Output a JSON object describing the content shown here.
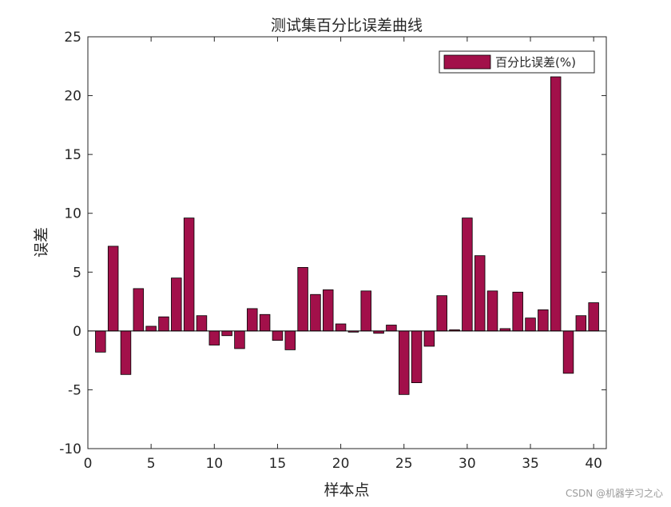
{
  "chart_data": {
    "type": "bar",
    "title": "测试集百分比误差曲线",
    "xlabel": "样本点",
    "ylabel": "误差",
    "xlim": [
      0,
      41
    ],
    "ylim": [
      -10,
      25
    ],
    "xticks": [
      0,
      5,
      10,
      15,
      20,
      25,
      30,
      35,
      40
    ],
    "yticks": [
      -10,
      -5,
      0,
      5,
      10,
      15,
      20,
      25
    ],
    "grid": false,
    "legend_position": "top-right",
    "series": [
      {
        "name": "百分比误差(%)",
        "color": "#A2104A",
        "x": [
          1,
          2,
          3,
          4,
          5,
          6,
          7,
          8,
          9,
          10,
          11,
          12,
          13,
          14,
          15,
          16,
          17,
          18,
          19,
          20,
          21,
          22,
          23,
          24,
          25,
          26,
          27,
          28,
          29,
          30,
          31,
          32,
          33,
          34,
          35,
          36,
          37,
          38,
          39,
          40
        ],
        "values": [
          -1.8,
          7.2,
          -3.7,
          3.6,
          0.4,
          1.2,
          4.5,
          9.6,
          1.3,
          -1.2,
          -0.4,
          -1.5,
          1.9,
          1.4,
          -0.8,
          -1.6,
          5.4,
          3.1,
          3.5,
          0.6,
          -0.1,
          3.4,
          -0.2,
          0.5,
          -5.4,
          -4.4,
          -1.3,
          3.0,
          0.1,
          9.6,
          6.4,
          3.4,
          0.2,
          3.3,
          1.1,
          1.8,
          21.6,
          -3.6,
          1.3,
          2.4
        ]
      }
    ]
  },
  "watermark": "CSDN @机器学习之心"
}
